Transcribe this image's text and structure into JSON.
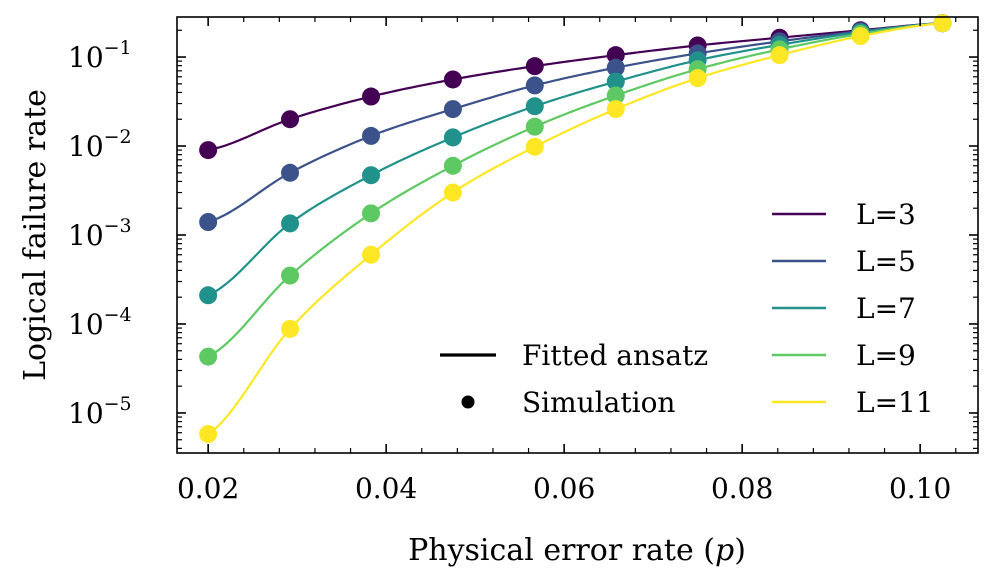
{
  "chart_data": {
    "type": "line",
    "xlabel": "Physical error rate (",
    "xlabel_var": "p",
    "xlabel_close": ")",
    "ylabel": "Logical failure rate",
    "xlim": [
      0.0165,
      0.1065
    ],
    "ylim_log10": [
      -5.45,
      -0.55
    ],
    "yscale": "log",
    "x_ticks": [
      0.02,
      0.04,
      0.06,
      0.08,
      0.1
    ],
    "x_tick_labels": [
      "0.02",
      "0.04",
      "0.06",
      "0.08",
      "0.10"
    ],
    "y_ticks_log10": [
      -1,
      -2,
      -3,
      -4,
      -5
    ],
    "y_tick_base": "10",
    "y_tick_exponents": [
      "−1",
      "−2",
      "−3",
      "−4",
      "−5"
    ],
    "x": [
      0.02,
      0.0292,
      0.0383,
      0.0475,
      0.0567,
      0.0658,
      0.075,
      0.0842,
      0.0933,
      0.1025
    ],
    "series": [
      {
        "name": "L=3",
        "color": "#440154",
        "values": [
          0.009,
          0.02,
          0.036,
          0.056,
          0.079,
          0.105,
          0.135,
          0.165,
          0.2,
          0.24
        ]
      },
      {
        "name": "L=5",
        "color": "#3b528b",
        "values": [
          0.0014,
          0.005,
          0.013,
          0.026,
          0.048,
          0.076,
          0.11,
          0.15,
          0.195,
          0.24
        ]
      },
      {
        "name": "L=7",
        "color": "#21918c",
        "values": [
          0.00021,
          0.00135,
          0.0047,
          0.0125,
          0.028,
          0.053,
          0.092,
          0.137,
          0.19,
          0.24
        ]
      },
      {
        "name": "L=9",
        "color": "#5ec962",
        "values": [
          4.3e-05,
          0.00035,
          0.00175,
          0.006,
          0.0165,
          0.037,
          0.073,
          0.122,
          0.182,
          0.24
        ]
      },
      {
        "name": "L=11",
        "color": "#fde725",
        "values": [
          5.8e-06,
          8.8e-05,
          0.0006,
          0.003,
          0.0098,
          0.026,
          0.058,
          0.105,
          0.172,
          0.24
        ]
      }
    ],
    "style_legend": [
      {
        "label": "Fitted ansatz",
        "marker": "line"
      },
      {
        "label": "Simulation",
        "marker": "dot"
      }
    ],
    "legend_placement": "lower-right",
    "grid": false
  }
}
